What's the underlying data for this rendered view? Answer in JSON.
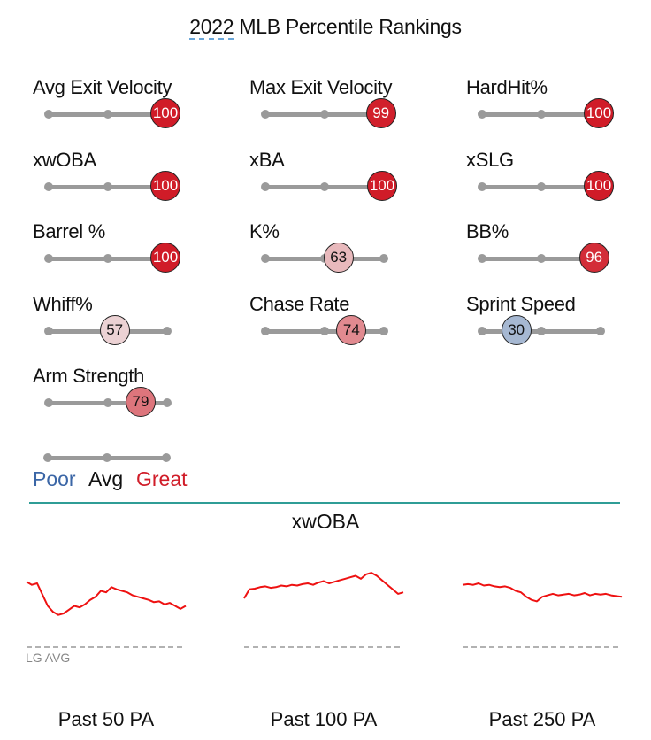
{
  "title": {
    "first": "2022",
    "rest": " MLB Percentile Rankings"
  },
  "colors": {
    "great": "#d01c28",
    "poor": "#3b66a6",
    "track": "#9a9a9a",
    "line": "#ee1111",
    "divider": "#2f9d96"
  },
  "chart_data": [
    {
      "type": "percentile_bars",
      "title": "2022 MLB Percentile Rankings",
      "scale": {
        "min": 1,
        "max": 100
      },
      "metrics": [
        {
          "label": "Avg Exit Velocity",
          "percentile": 100
        },
        {
          "label": "Max Exit Velocity",
          "percentile": 99
        },
        {
          "label": "HardHit%",
          "percentile": 100
        },
        {
          "label": "xwOBA",
          "percentile": 100
        },
        {
          "label": "xBA",
          "percentile": 100
        },
        {
          "label": "xSLG",
          "percentile": 100
        },
        {
          "label": "Barrel %",
          "percentile": 100
        },
        {
          "label": "K%",
          "percentile": 63
        },
        {
          "label": "BB%",
          "percentile": 96
        },
        {
          "label": "Whiff%",
          "percentile": 57
        },
        {
          "label": "Chase Rate",
          "percentile": 74
        },
        {
          "label": "Sprint Speed",
          "percentile": 30
        },
        {
          "label": "Arm Strength",
          "percentile": 79
        }
      ],
      "legend": {
        "poor": "Poor",
        "avg": "Avg",
        "great": "Great"
      }
    },
    {
      "type": "line",
      "title": "xwOBA",
      "reference_label": "LG AVG",
      "panels": [
        {
          "label": "Past 50 PA",
          "values": [
            0.62,
            0.58,
            0.6,
            0.45,
            0.3,
            0.22,
            0.18,
            0.2,
            0.25,
            0.3,
            0.28,
            0.32,
            0.38,
            0.42,
            0.5,
            0.48,
            0.55,
            0.52,
            0.5,
            0.48,
            0.44,
            0.42,
            0.4,
            0.38,
            0.35,
            0.36,
            0.32,
            0.34,
            0.3,
            0.26,
            0.3
          ]
        },
        {
          "label": "Past 100 PA",
          "values": [
            0.4,
            0.52,
            0.53,
            0.55,
            0.56,
            0.54,
            0.55,
            0.57,
            0.56,
            0.58,
            0.57,
            0.59,
            0.6,
            0.58,
            0.61,
            0.63,
            0.6,
            0.62,
            0.64,
            0.66,
            0.68,
            0.7,
            0.66,
            0.72,
            0.74,
            0.7,
            0.64,
            0.58,
            0.52,
            0.46,
            0.48
          ]
        },
        {
          "label": "Past 250 PA",
          "values": [
            0.58,
            0.59,
            0.58,
            0.6,
            0.57,
            0.58,
            0.56,
            0.55,
            0.56,
            0.54,
            0.5,
            0.48,
            0.42,
            0.38,
            0.36,
            0.42,
            0.44,
            0.46,
            0.44,
            0.45,
            0.46,
            0.44,
            0.45,
            0.47,
            0.44,
            0.46,
            0.45,
            0.46,
            0.44,
            0.43,
            0.42
          ]
        }
      ]
    }
  ]
}
